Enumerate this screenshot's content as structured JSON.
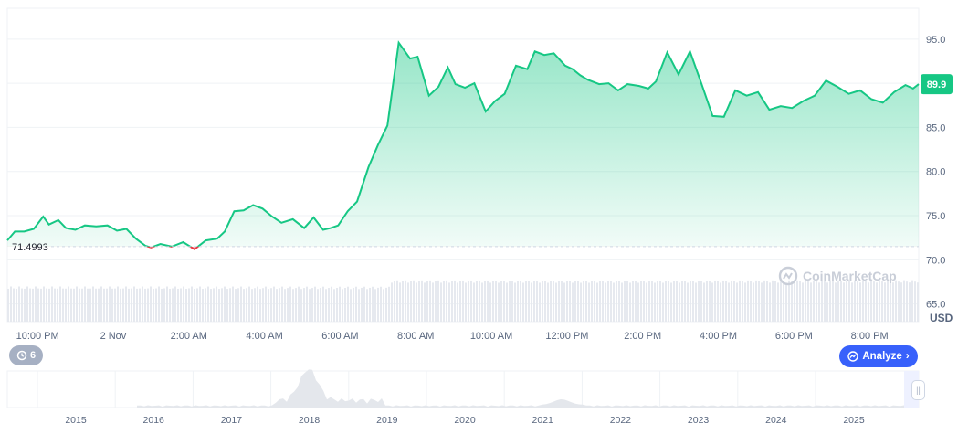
{
  "chart_data": {
    "type": "area",
    "unit": "USD",
    "baseline": 71.4993,
    "baseline_label": "71.4993",
    "current_value_label": "89.9",
    "ylim": [
      63,
      98.5
    ],
    "y_ticks": [
      "95.0",
      "90.0",
      "85.0",
      "80.0",
      "75.0",
      "70.0",
      "65.0"
    ],
    "y_tick_values": [
      95,
      90,
      85,
      80,
      75,
      70,
      65
    ],
    "x_ticks": [
      "10:00 PM",
      "2 Nov",
      "2:00 AM",
      "4:00 AM",
      "6:00 AM",
      "8:00 AM",
      "10:00 AM",
      "12:00 PM",
      "2:00 PM",
      "4:00 PM",
      "6:00 PM",
      "8:00 PM"
    ],
    "x_tick_hours": [
      0,
      2,
      4,
      6,
      8,
      10,
      12,
      14,
      16,
      18,
      20,
      22
    ],
    "x_range_hours": [
      -0.8,
      23.3
    ],
    "series": [
      {
        "x": [
          -0.8,
          -0.6,
          -0.35,
          -0.1,
          0.15,
          0.3,
          0.55,
          0.75,
          1.0,
          1.25,
          1.55,
          1.85,
          2.1,
          2.35,
          2.6,
          2.85,
          3.0,
          3.25,
          3.55,
          3.85,
          4.15,
          4.45,
          4.75,
          4.95,
          5.2,
          5.45,
          5.7,
          5.95,
          6.2,
          6.45,
          6.75,
          7.05,
          7.3,
          7.55,
          7.75,
          7.95,
          8.2,
          8.45,
          8.75,
          9.0,
          9.25,
          9.55,
          9.85,
          10.05,
          10.35,
          10.6,
          10.85,
          11.05,
          11.3,
          11.55,
          11.85,
          12.1,
          12.35,
          12.65,
          12.95,
          13.15,
          13.4,
          13.65,
          13.95,
          14.15,
          14.35,
          14.55,
          14.85,
          15.1,
          15.35,
          15.6,
          15.9,
          16.15,
          16.35,
          16.65,
          16.95,
          17.25,
          17.55,
          17.85,
          18.15,
          18.45,
          18.75,
          19.05,
          19.35,
          19.65,
          19.95,
          20.25,
          20.55,
          20.85,
          21.15,
          21.45,
          21.75,
          22.05,
          22.35,
          22.65,
          22.95,
          23.15,
          23.3
        ],
        "y": [
          72.2,
          73.2,
          73.2,
          73.5,
          74.9,
          74.0,
          74.5,
          73.6,
          73.4,
          73.9,
          73.8,
          73.9,
          73.3,
          73.5,
          72.4,
          71.6,
          71.4,
          71.8,
          71.5,
          72.0,
          71.2,
          72.2,
          72.4,
          73.2,
          75.5,
          75.6,
          76.2,
          75.8,
          74.9,
          74.2,
          74.6,
          73.6,
          74.8,
          73.4,
          73.6,
          73.9,
          75.5,
          76.6,
          80.5,
          83.0,
          85.2,
          94.6,
          92.8,
          93.0,
          88.6,
          89.6,
          91.8,
          89.9,
          89.5,
          90.0,
          86.8,
          88.0,
          88.8,
          92.0,
          91.6,
          93.6,
          93.2,
          93.4,
          92.0,
          91.6,
          90.9,
          90.4,
          89.9,
          90.0,
          89.2,
          89.9,
          89.7,
          89.4,
          90.2,
          93.5,
          91.0,
          93.6,
          90.0,
          86.3,
          86.2,
          89.2,
          88.6,
          89.0,
          87.0,
          87.4,
          87.2,
          88.0,
          88.6,
          90.3,
          89.6,
          88.8,
          89.2,
          88.2,
          87.8,
          89.0,
          89.8,
          89.4,
          89.9
        ]
      }
    ],
    "navigator": {
      "x_ticks": [
        "2015",
        "2016",
        "2017",
        "2018",
        "2019",
        "2020",
        "2021",
        "2022",
        "2023",
        "2024",
        "2025"
      ],
      "x_tick_years": [
        2015,
        2016,
        2017,
        2018,
        2019,
        2020,
        2021,
        2022,
        2023,
        2024,
        2025
      ]
    },
    "grid": true,
    "colors": {
      "line_up": "#16c784",
      "line_down": "#ea3943",
      "fill_up": "#16c784",
      "fill_down": "#ea3943",
      "grid": "#eff2f5",
      "volume": "#e6e9ef",
      "accent": "#3861fb"
    }
  },
  "ui": {
    "history_count": "6",
    "analyze_label": "Analyze",
    "watermark": "CoinMarketCap"
  },
  "icons": {
    "history": "history-icon",
    "analyze": "analyze-icon",
    "chevron": "chevron-right-icon",
    "handle": "drag-handle-icon",
    "logo": "coinmarketcap-logo-icon"
  }
}
